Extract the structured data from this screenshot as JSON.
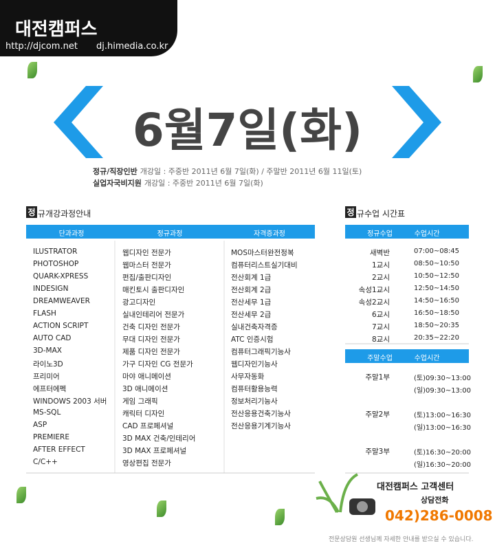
{
  "header": {
    "brand": "대전캠퍼스",
    "url1": "http://djcom.net",
    "url2": "dj.himedia.co.kr"
  },
  "date": "6월7일(화)",
  "schedule": [
    {
      "label": "정규/직장인반",
      "text": "개강일 : 주중반 2011년 6월 7일(화) / 주말반 2011년 6월 11일(토)"
    },
    {
      "label": "실업자국비지원",
      "text": "개강일 : 주중반 2011년 6월 7일(화)"
    }
  ],
  "courses": {
    "badge": "정",
    "title": "규개강과정안내",
    "headers": [
      "단과과정",
      "정규과정",
      "자격증과정"
    ],
    "columns": [
      [
        "ILUSTRATOR",
        "PHOTOSHOP",
        "QUARK-XPRESS",
        "INDESIGN",
        "DREAMWEAVER",
        "FLASH",
        "ACTION SCRIPT",
        "AUTO CAD",
        "3D-MAX",
        "라이노3D",
        "프리미어",
        "에프터에펙",
        "WINDOWS 2003 서버",
        "MS-SQL",
        "ASP",
        "PREMIERE",
        "AFTER EFFECT",
        "C/C++"
      ],
      [
        "웹디자인 전문가",
        "웹마스터 전문가",
        "편집/출판디자인",
        "매킨토시 출판디자인",
        "광고디자인",
        "실내인테리어 전문가",
        "건축 디자인 전문가",
        "무대 디자인 전문가",
        "제품 디자인 전문가",
        "가구 디자인 CG 전문가",
        "마야 애니메이션",
        "3D 애니메이션",
        "게임 그래픽",
        "캐릭터 디자인",
        "CAD 프로페셔널",
        "3D MAX 건축/인테리어",
        "3D MAX 프로페셔널",
        "영상편집 전문가"
      ],
      [
        "MOS마스터완전정복",
        "컴퓨터리스트실기대비",
        "전산회계 1급",
        "전산회계 2급",
        "전산세무 1급",
        "전산세무 2급",
        "실내건축자격증",
        "ATC 인증시험",
        "컴퓨터그래픽기능사",
        "웹디자인기능사",
        "사무자동화",
        "컴퓨터활용능력",
        "정보처리기능사",
        "전산응용건축기능사",
        "전산응용기계기능사"
      ]
    ]
  },
  "timetable": {
    "badge": "정",
    "title": "규수업 시간표",
    "weekday_headers": [
      "정규수업",
      "수업시간"
    ],
    "weekday_rows": [
      [
        "새벽반",
        "07:00~08:45"
      ],
      [
        "1교시",
        "08:50~10:50"
      ],
      [
        "2교시",
        "10:50~12:50"
      ],
      [
        "속성1교시",
        "12:50~14:50"
      ],
      [
        "속성2교시",
        "14:50~16:50"
      ],
      [
        "6교시",
        "16:50~18:50"
      ],
      [
        "7교시",
        "18:50~20:35"
      ],
      [
        "8교시",
        "20:35~22:20"
      ]
    ],
    "weekend_headers": [
      "주말수업",
      "수업시간"
    ],
    "weekend_rows": [
      [
        "주말1부",
        "(토)09:30~13:00"
      ],
      [
        null,
        "(일)09:30~13:00"
      ],
      [
        "주말2부",
        "(토)13:00~16:30"
      ],
      [
        null,
        "(일)13:00~16:30"
      ],
      [
        "주말3부",
        "(토)16:30~20:00"
      ],
      [
        null,
        "(일)16:30~20:00"
      ]
    ]
  },
  "contact": {
    "title": "대전캠퍼스 고객센터",
    "label": "상담전화",
    "phone": "042)286-0008",
    "note": "전문상담원 선생님께 자세한 안내를 받으실 수 있습니다."
  }
}
